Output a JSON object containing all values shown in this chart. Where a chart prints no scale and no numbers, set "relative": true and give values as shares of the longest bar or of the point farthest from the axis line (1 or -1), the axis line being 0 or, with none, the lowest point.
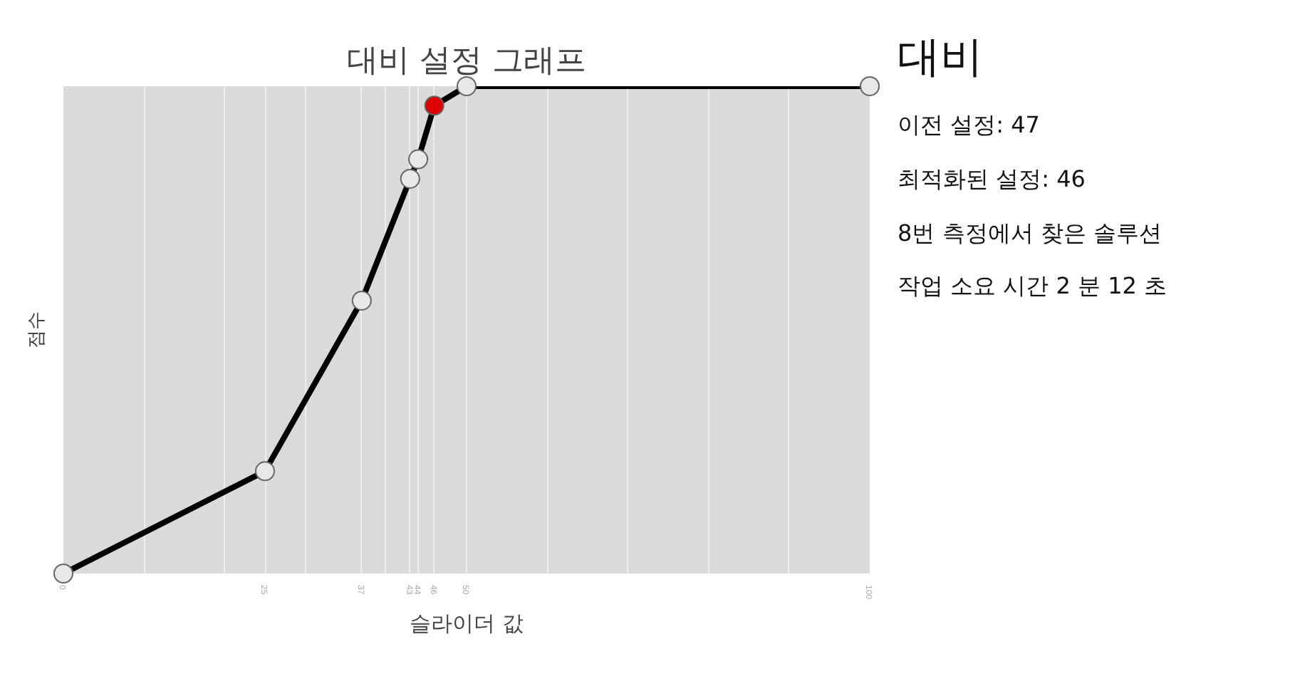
{
  "chart_data": {
    "type": "line",
    "title": "대비 설정 그래프",
    "xlabel": "슬라이더 값",
    "ylabel": "점수",
    "x": [
      0,
      25,
      37,
      43,
      44,
      46,
      50,
      100
    ],
    "series": [
      {
        "color": "#000000",
        "values": [
          0,
          0.21,
          0.56,
          0.81,
          0.85,
          0.96,
          1,
          1
        ],
        "colors": [
          "#e8e8e8",
          "#e8e8e8",
          "#e8e8e8",
          "#e8e8e8",
          "#e8e8e8",
          "#dd0000",
          "#e8e8e8",
          "#e8e8e8"
        ]
      }
    ],
    "relative": true,
    "xlim": [
      0,
      100
    ],
    "xticks": [
      0,
      {
        "value": 10,
        "label": null
      },
      {
        "value": 20,
        "label": null
      },
      25,
      {
        "value": 30,
        "label": null
      },
      37,
      {
        "value": 40,
        "label": null
      },
      43,
      44,
      46,
      50,
      {
        "value": 60,
        "label": null
      },
      {
        "value": 70,
        "label": null
      },
      {
        "value": 80,
        "label": null
      },
      {
        "value": 90,
        "label": null
      },
      100
    ],
    "grid": "x",
    "marker": "circle",
    "line_style": "solid",
    "annotations": [
      "대비",
      "이전 설정: 47",
      "최적화된 설정: 46",
      "8번 측정에서 찾은 솔루션",
      "작업 소요 시간 2 분 12 초"
    ]
  }
}
